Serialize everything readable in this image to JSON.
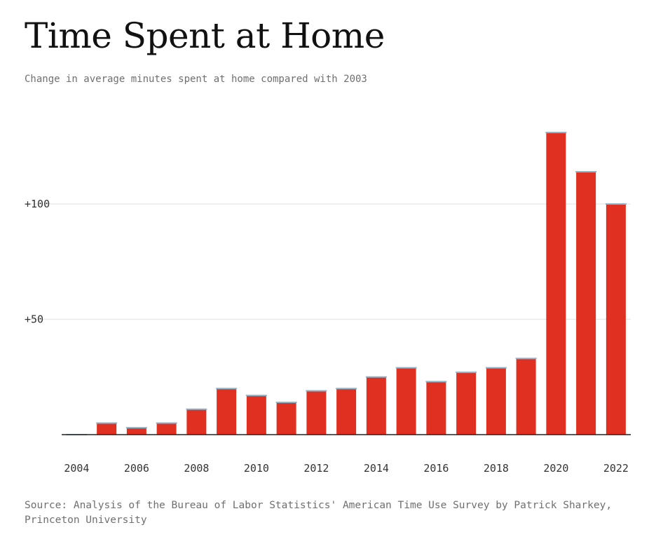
{
  "header": {
    "title": "Time Spent at Home",
    "subtitle": "Change in average minutes spent at home compared with 2003"
  },
  "footer": {
    "source": "Source: Analysis of the Bureau of Labor Statistics' American Time Use Survey by Patrick Sharkey, Princeton University"
  },
  "chart_data": {
    "type": "bar",
    "title": "Time Spent at Home",
    "subtitle": "Change in average minutes spent at home compared with 2003",
    "xlabel": "",
    "ylabel": "",
    "categories": [
      "2004",
      "2005",
      "2006",
      "2007",
      "2008",
      "2009",
      "2010",
      "2011",
      "2012",
      "2013",
      "2014",
      "2015",
      "2016",
      "2017",
      "2018",
      "2019",
      "2020",
      "2021",
      "2022"
    ],
    "values": [
      0,
      5,
      3,
      5,
      11,
      20,
      17,
      14,
      19,
      20,
      25,
      29,
      23,
      27,
      29,
      33,
      131,
      114,
      100
    ],
    "x_tick_labels": [
      "2004",
      "2006",
      "2008",
      "2010",
      "2012",
      "2014",
      "2016",
      "2018",
      "2020",
      "2022"
    ],
    "y_ticks": [
      50,
      100
    ],
    "y_tick_labels": [
      "+50",
      "+100"
    ],
    "ylim": [
      0,
      140
    ],
    "grid": true,
    "colors": {
      "bar": "#e03021",
      "bar_cap": "#8fb3c9",
      "grid": "#e6e6e6",
      "baseline": "#222222"
    }
  }
}
